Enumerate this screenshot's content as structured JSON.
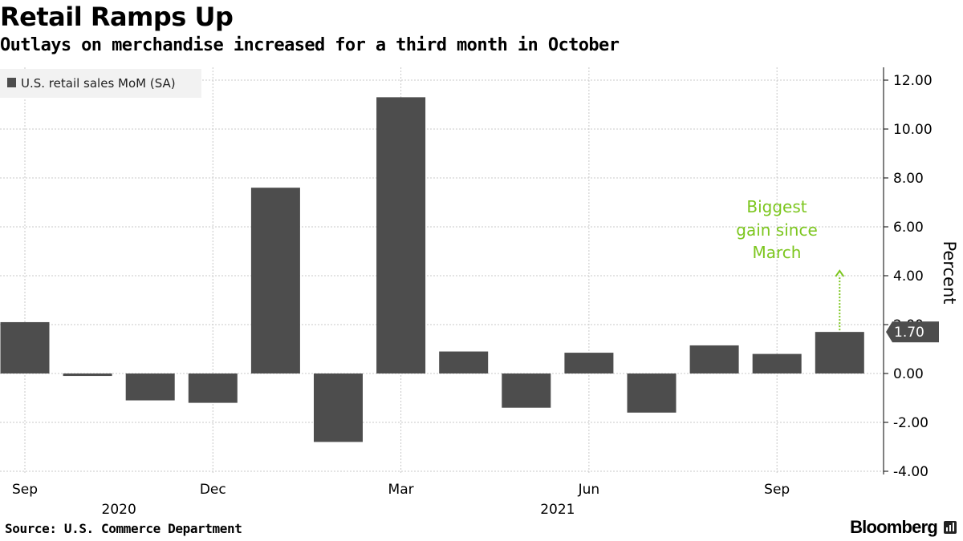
{
  "title": "Retail Ramps Up",
  "subtitle": "Outlays on merchandise increased for a third month in October",
  "source": "Source: U.S. Commerce Department",
  "brand": "Bloomberg",
  "colors": {
    "bar": "#4d4d4d",
    "annotation": "#7cc61e",
    "grid": "#c8c8c8",
    "legend_bg": "#f2f2f2"
  },
  "chart_data": {
    "type": "bar",
    "title": "Retail Ramps Up",
    "subtitle": "Outlays on merchandise increased for a third month in October",
    "categories": [
      "Sep 2020",
      "Oct 2020",
      "Nov 2020",
      "Dec 2020",
      "Jan 2021",
      "Feb 2021",
      "Mar 2021",
      "Apr 2021",
      "May 2021",
      "Jun 2021",
      "Jul 2021",
      "Aug 2021",
      "Sep 2021",
      "Oct 2021"
    ],
    "series": [
      {
        "name": "U.S. retail sales MoM (SA)",
        "values": [
          2.1,
          -0.1,
          -1.1,
          -1.2,
          7.6,
          -2.8,
          11.3,
          0.9,
          -1.4,
          0.85,
          -1.6,
          1.15,
          0.8,
          1.7
        ]
      }
    ],
    "ylabel": "Percent",
    "ylim": [
      -4,
      12
    ],
    "yticks": [
      12,
      10,
      8,
      6,
      4,
      2,
      0,
      -2,
      -4
    ],
    "ytick_labels": [
      "12.00",
      "10.00",
      "8.00",
      "6.00",
      "4.00",
      "2.00",
      "0.00",
      "-2.00",
      "-4.00"
    ],
    "xticks": [
      {
        "index": 0,
        "label": "Sep"
      },
      {
        "index": 3,
        "label": "Dec"
      },
      {
        "index": 6,
        "label": "Mar"
      },
      {
        "index": 9,
        "label": "Jun"
      },
      {
        "index": 12,
        "label": "Sep"
      }
    ],
    "year_labels": [
      {
        "center_index": 1.5,
        "label": "2020"
      },
      {
        "center_index": 8.5,
        "label": "2021"
      }
    ],
    "legend": {
      "position": "top-left",
      "label": "U.S. retail sales MoM (SA)"
    },
    "last_value_label": "1.70",
    "annotation": {
      "text": [
        "Biggest",
        "gain since",
        "March"
      ],
      "target_index": 13,
      "arrow_to_value": 4.2
    },
    "grid": true
  }
}
